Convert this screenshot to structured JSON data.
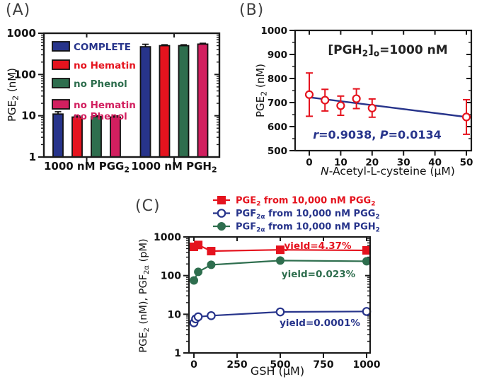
{
  "figure": {
    "panel_a_label": "(A)",
    "panel_b_label": "(B)",
    "panel_c_label": "(C)"
  },
  "chart_data": [
    {
      "panel": "A",
      "type": "bar",
      "y_scale": "log",
      "ylabel": "PGE_{2} (nM)",
      "ylim": [
        1,
        1000
      ],
      "yticks": [
        1,
        10,
        100,
        1000
      ],
      "categories": [
        "1000 nM PGG_{2}",
        "1000 nM PGH_{2}"
      ],
      "legend_position": "top-left-inside",
      "series": [
        {
          "name": "COMPLETE",
          "color": "#27348B",
          "values": [
            11,
            470
          ],
          "errors": [
            1.5,
            70
          ]
        },
        {
          "name": "no Hematin",
          "color": "#E5131E",
          "values": [
            9.3,
            500
          ],
          "errors": [
            0.6,
            25
          ]
        },
        {
          "name": "no Phenol",
          "color": "#2E6E4E",
          "values": [
            9.5,
            500
          ],
          "errors": [
            0.5,
            25
          ]
        },
        {
          "name": "no Hematin|no Phenol",
          "color": "#D21F5F",
          "values": [
            9.3,
            545
          ],
          "errors": [
            0.6,
            25
          ]
        }
      ]
    },
    {
      "panel": "B",
      "type": "scatter",
      "annotation": "[PGH_{2}]_{o}=1000 nM",
      "stats": "*r*=0.9038, *P*=0.0134",
      "xlabel": "*N*-Acetyl-L-cysteine (μM)",
      "ylabel": "PGE_{2} (nM)",
      "xlim": [
        0,
        50
      ],
      "ylim": [
        500,
        1000
      ],
      "xticks": [
        0,
        10,
        20,
        30,
        40,
        50
      ],
      "yticks": [
        500,
        600,
        700,
        800,
        900,
        1000
      ],
      "marker_color": "#E5131E",
      "fit_color": "#27348B",
      "points": {
        "x": [
          0,
          5,
          10,
          15,
          20,
          50
        ],
        "y": [
          733,
          710,
          687,
          716,
          677,
          640
        ],
        "yerr": [
          90,
          45,
          40,
          41,
          38,
          72
        ]
      },
      "fit_line": {
        "x": [
          0,
          50
        ],
        "y": [
          722,
          640
        ]
      }
    },
    {
      "panel": "C",
      "type": "line",
      "y_scale": "log",
      "xlabel": "GSH (μM)",
      "ylabel": "PGE_{2} (nM), PGF_{2α} (pM)",
      "xlim": [
        0,
        1000
      ],
      "ylim": [
        1,
        1000
      ],
      "xticks": [
        0,
        250,
        500,
        750,
        1000
      ],
      "yticks": [
        1,
        10,
        100,
        1000
      ],
      "legend_position": "above-plot",
      "series": [
        {
          "name": "PGE_{2} from 10,000 nM PGG_{2}",
          "color": "#E5131E",
          "marker": "square",
          "x": [
            0,
            25,
            100,
            500,
            1000
          ],
          "y": [
            555,
            620,
            430,
            465,
            450
          ],
          "yield_label": "yield=4.37%"
        },
        {
          "name": "PGF_{2α} from 10,000 nM PGG_{2}",
          "color": "#27348B",
          "marker": "circle-open",
          "x": [
            0,
            10,
            25,
            100,
            500,
            1000
          ],
          "y": [
            6,
            7.6,
            8.6,
            9.2,
            11.5,
            11.8
          ],
          "yield_label": "yield=0.0001%"
        },
        {
          "name": "PGF_{2α} from 10,000 nM PGH_{2}",
          "color": "#2E6E4E",
          "marker": "circle",
          "x": [
            0,
            25,
            100,
            500,
            1000
          ],
          "y": [
            75,
            125,
            190,
            245,
            235
          ],
          "yield_label": "yield=0.023%"
        }
      ]
    }
  ]
}
